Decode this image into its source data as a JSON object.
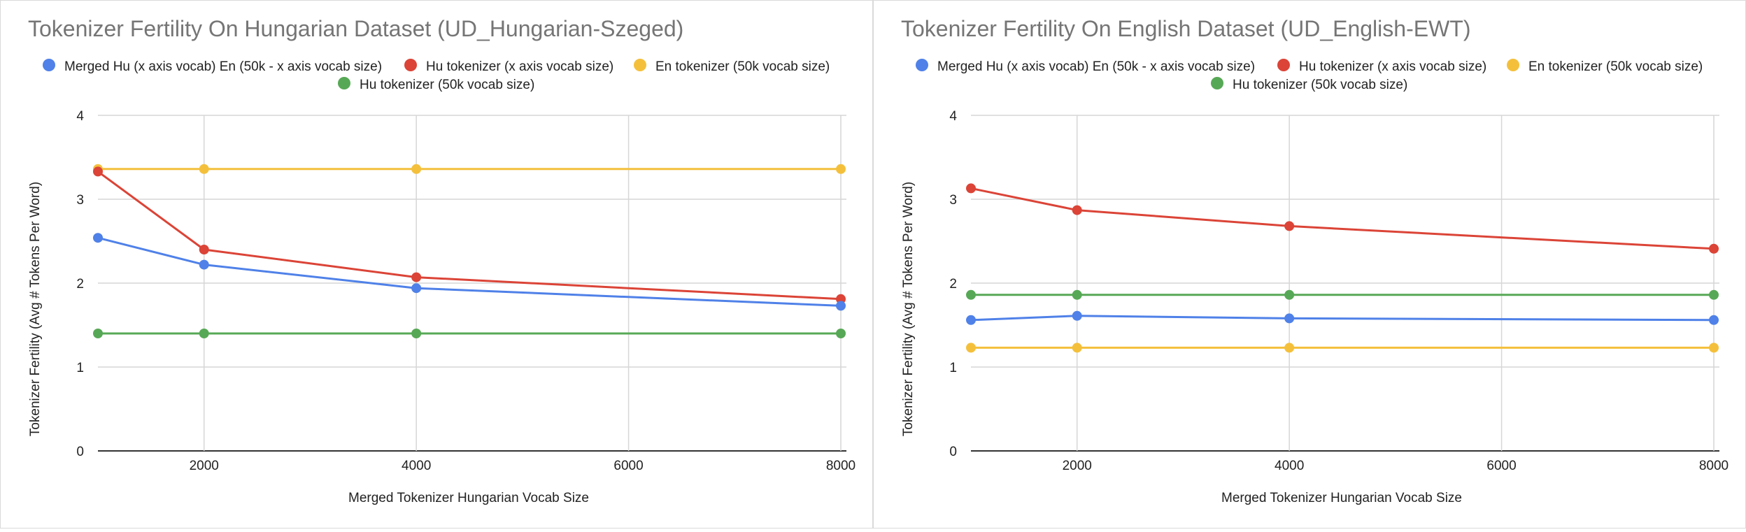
{
  "chart_data": [
    {
      "type": "line",
      "title": "Tokenizer Fertility On Hungarian Dataset (UD_Hungarian-Szeged)",
      "xlabel": "Merged Tokenizer Hungarian Vocab Size",
      "ylabel": "Tokenizer Fertility (Avg # Tokens Per  Word)",
      "xlim": [
        1000,
        8000
      ],
      "ylim": [
        0,
        4
      ],
      "xticks": [
        2000,
        4000,
        6000,
        8000
      ],
      "yticks": [
        0,
        1,
        2,
        3,
        4
      ],
      "grid": true,
      "legend_position": "top",
      "x": [
        1000,
        2000,
        4000,
        8000
      ],
      "series": [
        {
          "name": "Merged Hu (x axis vocab) En (50k - x axis vocab size)",
          "color": "#4f81e8",
          "values": [
            2.54,
            2.22,
            1.94,
            1.73
          ]
        },
        {
          "name": "Hu tokenizer (x axis vocab size)",
          "color": "#db4437",
          "values": [
            3.33,
            2.4,
            2.07,
            1.81
          ]
        },
        {
          "name": "En tokenizer (50k vocab size)",
          "color": "#f4c03c",
          "values": [
            3.36,
            3.36,
            3.36,
            3.36
          ]
        },
        {
          "name": "Hu tokenizer (50k vocab size)",
          "color": "#57a856",
          "values": [
            1.4,
            1.4,
            1.4,
            1.4
          ]
        }
      ]
    },
    {
      "type": "line",
      "title": "Tokenizer Fertility On English Dataset (UD_English-EWT)",
      "xlabel": "Merged Tokenizer Hungarian Vocab Size",
      "ylabel": "Tokenizer Fertility (Avg # Tokens Per  Word)",
      "xlim": [
        1000,
        8000
      ],
      "ylim": [
        0,
        4
      ],
      "xticks": [
        2000,
        4000,
        6000,
        8000
      ],
      "yticks": [
        0,
        1,
        2,
        3,
        4
      ],
      "grid": true,
      "legend_position": "top",
      "x": [
        1000,
        2000,
        4000,
        8000
      ],
      "series": [
        {
          "name": "Merged Hu (x axis vocab) En (50k - x axis vocab size)",
          "color": "#4f81e8",
          "values": [
            1.56,
            1.61,
            1.58,
            1.56
          ]
        },
        {
          "name": "Hu tokenizer (x axis vocab size)",
          "color": "#db4437",
          "values": [
            3.13,
            2.87,
            2.68,
            2.41
          ]
        },
        {
          "name": "En tokenizer (50k vocab size)",
          "color": "#f4c03c",
          "values": [
            1.23,
            1.23,
            1.23,
            1.23
          ]
        },
        {
          "name": "Hu tokenizer (50k vocab size)",
          "color": "#57a856",
          "values": [
            1.86,
            1.86,
            1.86,
            1.86
          ]
        }
      ]
    }
  ]
}
